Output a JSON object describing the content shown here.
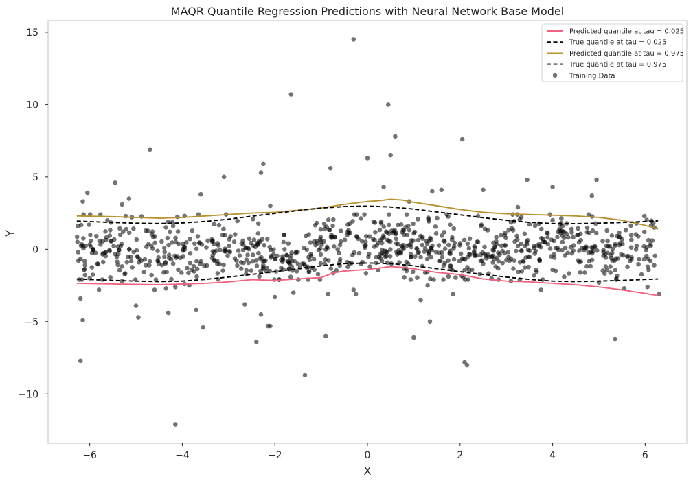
{
  "chart_data": {
    "type": "scatter",
    "title": "MAQR Quantile Regression Predictions with Neural Network Base Model",
    "xlabel": "X",
    "ylabel": "Y",
    "xlim": [
      -6.9,
      6.9
    ],
    "ylim": [
      -13.4,
      15.8
    ],
    "xticks": [
      -6,
      -4,
      -2,
      0,
      2,
      4,
      6
    ],
    "xtick_labels": [
      "−6",
      "−4",
      "−2",
      "0",
      "2",
      "4",
      "6"
    ],
    "yticks": [
      -10,
      -5,
      0,
      5,
      10,
      15
    ],
    "ytick_labels": [
      "−10",
      "−5",
      "0",
      "5",
      "10",
      "15"
    ],
    "grid": false,
    "legend_position": "top-right",
    "series": [
      {
        "name": "Predicted quantile at tau = 0.025",
        "kind": "line",
        "color": "#f0637f",
        "dash": "solid",
        "x": [
          -6.28,
          -5.5,
          -4.5,
          -3.5,
          -3.0,
          -2.5,
          -2.0,
          -1.5,
          -1.0,
          -0.75,
          -0.5,
          0.0,
          0.25,
          0.5,
          0.75,
          1.0,
          1.5,
          2.0,
          2.5,
          3.0,
          3.5,
          4.0,
          4.5,
          5.0,
          5.5,
          6.0,
          6.28
        ],
        "y": [
          -2.35,
          -2.4,
          -2.45,
          -2.35,
          -2.25,
          -2.1,
          -2.15,
          -2.05,
          -1.95,
          -1.65,
          -1.5,
          -1.4,
          -1.3,
          -1.2,
          -1.25,
          -1.35,
          -1.6,
          -1.75,
          -2.05,
          -2.2,
          -2.25,
          -2.35,
          -2.45,
          -2.6,
          -2.8,
          -3.05,
          -3.2
        ]
      },
      {
        "name": "True quantile at tau = 0.025",
        "kind": "line",
        "color": "#000000",
        "dash": "dashed",
        "x": [
          -6.28,
          -5.5,
          -5.0,
          -4.5,
          -4.0,
          -3.5,
          -3.0,
          -2.5,
          -2.0,
          -1.5,
          -1.0,
          -0.5,
          0.0,
          0.5,
          1.0,
          1.5,
          2.0,
          2.5,
          3.0,
          3.5,
          4.0,
          4.5,
          5.0,
          5.5,
          6.0,
          6.28
        ],
        "y": [
          -2.05,
          -2.15,
          -2.2,
          -2.23,
          -2.2,
          -2.08,
          -1.92,
          -1.74,
          -1.55,
          -1.34,
          -1.14,
          -0.99,
          -0.95,
          -0.99,
          -1.14,
          -1.34,
          -1.55,
          -1.74,
          -1.92,
          -2.08,
          -2.2,
          -2.23,
          -2.2,
          -2.15,
          -2.08,
          -2.05
        ]
      },
      {
        "name": "Predicted quantile at tau = 0.975",
        "kind": "line",
        "color": "#b8932f",
        "dash": "solid",
        "x": [
          -6.28,
          -5.5,
          -5.0,
          -4.5,
          -4.0,
          -3.5,
          -3.0,
          -2.5,
          -2.0,
          -1.5,
          -1.0,
          -0.5,
          0.0,
          0.25,
          0.5,
          0.75,
          1.0,
          1.5,
          2.0,
          2.5,
          3.0,
          3.5,
          4.0,
          4.5,
          5.0,
          5.5,
          6.0,
          6.28
        ],
        "y": [
          2.3,
          2.25,
          2.2,
          2.15,
          2.2,
          2.3,
          2.4,
          2.5,
          2.55,
          2.7,
          2.85,
          3.1,
          3.3,
          3.35,
          3.45,
          3.4,
          3.25,
          3.0,
          2.75,
          2.55,
          2.45,
          2.4,
          2.35,
          2.3,
          2.2,
          2.0,
          1.65,
          1.4
        ]
      },
      {
        "name": "True quantile at tau = 0.975",
        "kind": "line",
        "color": "#000000",
        "dash": "dashed",
        "x": [
          -6.28,
          -5.5,
          -5.0,
          -4.5,
          -4.0,
          -3.5,
          -3.0,
          -2.5,
          -2.0,
          -1.5,
          -1.0,
          -0.5,
          0.0,
          0.5,
          1.0,
          1.5,
          2.0,
          2.5,
          3.0,
          3.5,
          4.0,
          4.5,
          5.0,
          5.5,
          6.0,
          6.28
        ],
        "y": [
          1.95,
          1.85,
          1.8,
          1.78,
          1.82,
          1.92,
          2.08,
          2.28,
          2.48,
          2.68,
          2.85,
          2.95,
          2.98,
          2.92,
          2.78,
          2.58,
          2.38,
          2.18,
          2.0,
          1.86,
          1.78,
          1.77,
          1.8,
          1.85,
          1.92,
          1.97
        ]
      },
      {
        "name": "Training Data",
        "kind": "scatter",
        "color": "#444444",
        "x": [
          -0.3,
          0.45,
          -1.65,
          0.6,
          -4.7,
          2.05,
          0.0,
          0.5,
          -2.25,
          -0.8,
          -2.3,
          -5.45,
          -6.05,
          3.45,
          2.5,
          4.0,
          4.95,
          0.35,
          -5.15,
          1.4,
          -3.1,
          1.6,
          -6.15,
          -2.1,
          -3.6,
          4.85,
          -5.3,
          -3.95,
          3.25,
          0.9,
          -4.15,
          -3.7,
          -6.2,
          -6.15,
          -5.0,
          -4.95,
          -4.3,
          -3.95,
          -3.55,
          -2.65,
          -2.0,
          -1.35,
          -0.9,
          -0.25,
          1.0,
          1.15,
          1.35,
          1.85,
          2.1,
          2.15,
          3.75,
          5.35,
          5.55,
          6.05,
          6.3,
          -2.4,
          -2.15,
          -2.1,
          -0.85,
          -6.2,
          -4.15,
          -3.85,
          -1.6,
          -5.8,
          -2.3,
          -0.3,
          1.3,
          3.1,
          -4.6,
          -4.35,
          3.6,
          5.0,
          -5.3,
          -6.0,
          -6.25,
          4.25
        ],
        "y": [
          14.5,
          10.0,
          10.7,
          7.8,
          6.9,
          7.6,
          6.3,
          6.5,
          5.9,
          5.6,
          5.3,
          4.6,
          3.9,
          4.8,
          4.1,
          4.3,
          4.8,
          4.3,
          3.5,
          4.0,
          5.0,
          4.1,
          3.3,
          3.0,
          3.8,
          3.7,
          3.1,
          2.3,
          2.9,
          3.3,
          -12.1,
          -4.2,
          -7.7,
          -4.9,
          -3.9,
          -4.7,
          -4.4,
          -2.4,
          -5.4,
          -3.8,
          -3.3,
          -8.7,
          -6.0,
          -3.1,
          -6.1,
          -3.5,
          -5.0,
          -3.1,
          -7.8,
          -8.0,
          -2.8,
          -6.2,
          -2.7,
          -2.6,
          -3.1,
          -6.4,
          -5.3,
          -5.3,
          -3.1,
          -3.4,
          -2.6,
          -2.5,
          -3.0,
          -2.8,
          -4.5,
          -2.8,
          -2.5,
          -2.2,
          -2.8,
          -2.7,
          -1.8,
          -2.3,
          -2.2,
          -2.0,
          -0.2,
          -1.9
        ],
        "n_total": 1000,
        "seed": 7
      }
    ]
  }
}
